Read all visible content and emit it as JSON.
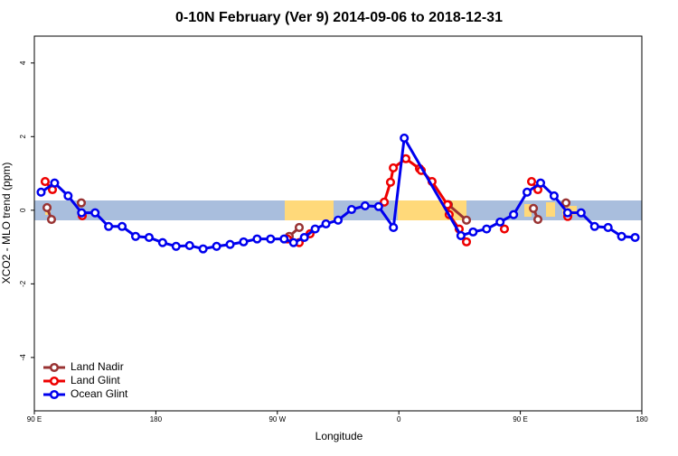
{
  "chart_data": {
    "type": "line",
    "title": "0-10N February (Ver 9)   2014-09-06 to 2018-12-31",
    "x_label": "Longitude",
    "y_label": "XCO2 - MLO trend (ppm)",
    "xlim": [
      90,
      540
    ],
    "xticks": [
      {
        "value": 90,
        "label": "90 E"
      },
      {
        "value": 180,
        "label": "180"
      },
      {
        "value": 270,
        "label": "90 W"
      },
      {
        "value": 360,
        "label": "0"
      },
      {
        "value": 450,
        "label": "90 E"
      },
      {
        "value": 540,
        "label": "180"
      }
    ],
    "ylim": [
      -5.45,
      4.73
    ],
    "yticks": [
      -4,
      -2,
      0,
      2,
      4
    ],
    "legend": "bottom-left",
    "series": [
      {
        "name": "Land Nadir",
        "color": "#993333",
        "x": [
          99.4,
          102.7,
          null,
          124.8,
          null,
          278.8,
          286.2,
          null,
          396.7,
          410.1,
          null,
          459.7,
          463,
          null,
          483.8
        ],
        "values": [
          0.07,
          -0.25,
          null,
          0.2,
          null,
          -0.71,
          -0.47,
          null,
          0.15,
          -0.27,
          null,
          0.05,
          -0.25,
          null,
          0.2
        ]
      },
      {
        "name": "Land Glint",
        "color": "#ee0000",
        "x": [
          98,
          103.4,
          null,
          125.5,
          null,
          277.5,
          286.2,
          294.2,
          null,
          349.2,
          353.8,
          355.9,
          365.2,
          375.3,
          376.6,
          384.6,
          396,
          397.3,
          404.7,
          410.1,
          null,
          438.2,
          null,
          458.3,
          463,
          null,
          485.1
        ],
        "values": [
          0.78,
          0.56,
          null,
          -0.15,
          null,
          -0.78,
          -0.88,
          -0.64,
          null,
          0.22,
          0.76,
          1.15,
          1.4,
          1.13,
          1.08,
          0.78,
          0.15,
          -0.12,
          -0.51,
          -0.86,
          null,
          -0.51,
          null,
          0.78,
          0.56,
          null,
          -0.17
        ]
      },
      {
        "name": "Ocean Glint",
        "color": "#0000ee",
        "x": [
          95,
          105,
          115,
          125,
          135,
          145,
          155,
          165,
          175,
          185,
          195,
          205,
          215,
          225,
          235,
          245,
          255,
          265,
          275,
          282,
          290,
          298,
          306,
          315,
          325,
          335,
          345,
          356,
          364,
          406,
          415,
          425,
          435,
          445,
          455,
          465,
          475,
          485,
          495,
          505,
          515,
          525,
          535
        ],
        "values": [
          0.49,
          0.74,
          0.39,
          -0.07,
          -0.07,
          -0.44,
          -0.44,
          -0.71,
          -0.74,
          -0.88,
          -0.98,
          -0.96,
          -1.05,
          -0.98,
          -0.93,
          -0.86,
          -0.78,
          -0.78,
          -0.78,
          -0.88,
          -0.74,
          -0.51,
          -0.37,
          -0.27,
          0.02,
          0.12,
          0.1,
          -0.47,
          1.96,
          -0.69,
          -0.59,
          -0.51,
          -0.32,
          -0.12,
          0.49,
          0.74,
          0.39,
          -0.07,
          -0.07,
          -0.44,
          -0.47,
          -0.71,
          -0.74
        ]
      }
    ]
  }
}
